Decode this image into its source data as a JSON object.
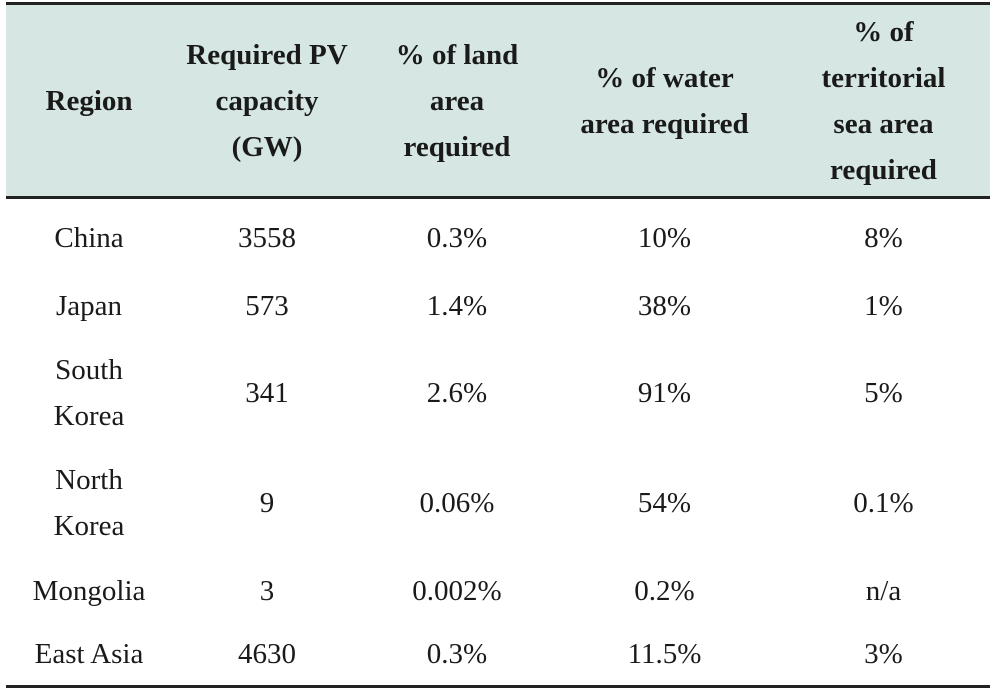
{
  "table": {
    "headers": [
      {
        "key": "region",
        "label": "Region"
      },
      {
        "key": "capacity",
        "label": "Required PV capacity (GW)"
      },
      {
        "key": "land",
        "label": "% of land area required"
      },
      {
        "key": "water",
        "label": "% of water area required"
      },
      {
        "key": "sea",
        "label": "% of territorial sea area required"
      }
    ],
    "rows": [
      {
        "region": "China",
        "capacity": "3558",
        "land": "0.3%",
        "water": "10%",
        "sea": "8%"
      },
      {
        "region": "Japan",
        "capacity": "573",
        "land": "1.4%",
        "water": "38%",
        "sea": "1%"
      },
      {
        "region": "South Korea",
        "capacity": "341",
        "land": "2.6%",
        "water": "91%",
        "sea": "5%"
      },
      {
        "region": "North Korea",
        "capacity": "9",
        "land": "0.06%",
        "water": "54%",
        "sea": "0.1%"
      },
      {
        "region": "Mongolia",
        "capacity": "3",
        "land": "0.002%",
        "water": "0.2%",
        "sea": "n/a"
      },
      {
        "region": "East Asia",
        "capacity": "4630",
        "land": "0.3%",
        "water": "11.5%",
        "sea": "3%"
      }
    ]
  }
}
